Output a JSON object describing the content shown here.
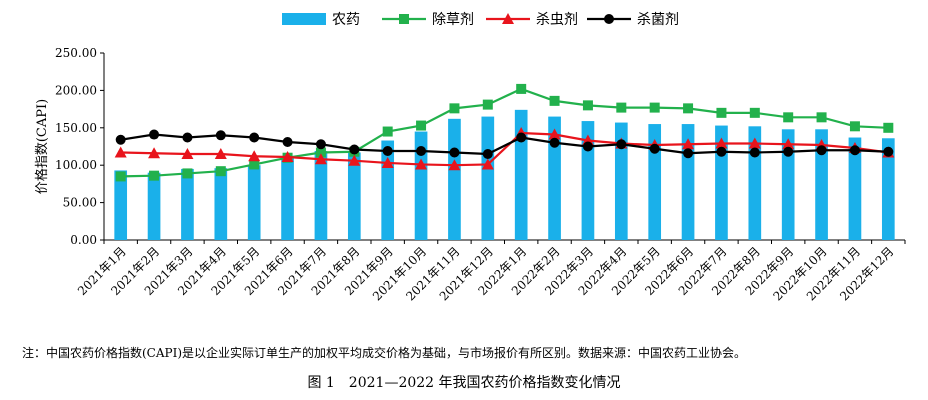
{
  "chart_data": {
    "type": "bar",
    "ylabel": "价格指数(CAPI)",
    "ylim": [
      0,
      250
    ],
    "yticks": [
      "0.00",
      "50.00",
      "100.00",
      "150.00",
      "200.00",
      "250.00"
    ],
    "categories": [
      "2021年1月",
      "2021年2月",
      "2021年3月",
      "2021年4月",
      "2021年5月",
      "2021年6月",
      "2021年7月",
      "2021年8月",
      "2021年9月",
      "2021年10月",
      "2021年11月",
      "2021年12月",
      "2022年1月",
      "2022年2月",
      "2022年3月",
      "2022年4月",
      "2022年5月",
      "2022年6月",
      "2022年7月",
      "2022年8月",
      "2022年9月",
      "2022年10月",
      "2022年11月",
      "2022年12月"
    ],
    "legend_position": "top",
    "grid": false,
    "series": [
      {
        "name": "农药",
        "kind": "bar",
        "color": "#1ab0ea",
        "values": [
          93,
          90,
          95,
          96,
          100,
          109,
          119,
          117,
          133,
          145,
          162,
          165,
          174,
          165,
          159,
          157,
          155,
          155,
          153,
          152,
          148,
          148,
          137,
          136
        ]
      },
      {
        "name": "除草剂",
        "kind": "line",
        "color": "#22b14c",
        "marker": "square",
        "values": [
          85,
          86,
          89,
          92,
          101,
          110,
          117,
          118,
          145,
          153,
          176,
          181,
          202,
          186,
          180,
          177,
          177,
          176,
          170,
          170,
          164,
          164,
          152,
          150
        ]
      },
      {
        "name": "杀虫剂",
        "kind": "line",
        "color": "#e8141c",
        "marker": "triangle",
        "values": [
          117,
          116,
          115,
          115,
          112,
          111,
          108,
          106,
          103,
          101,
          100,
          101,
          143,
          141,
          133,
          129,
          127,
          128,
          129,
          129,
          128,
          127,
          123,
          117
        ]
      },
      {
        "name": "杀菌剂",
        "kind": "line",
        "color": "#000000",
        "marker": "circle",
        "values": [
          134,
          141,
          137,
          140,
          137,
          131,
          128,
          121,
          119,
          119,
          117,
          115,
          137,
          130,
          125,
          128,
          122,
          116,
          118,
          117,
          118,
          120,
          120,
          118
        ]
      }
    ]
  },
  "note": "注：中国农药价格指数(CAPI)是以企业实际订单生产的加权平均成交价格为基础，与市场报价有所区别。数据来源：中国农药工业协会。",
  "caption": "图 1　2021—2022 年我国农药价格指数变化情况"
}
